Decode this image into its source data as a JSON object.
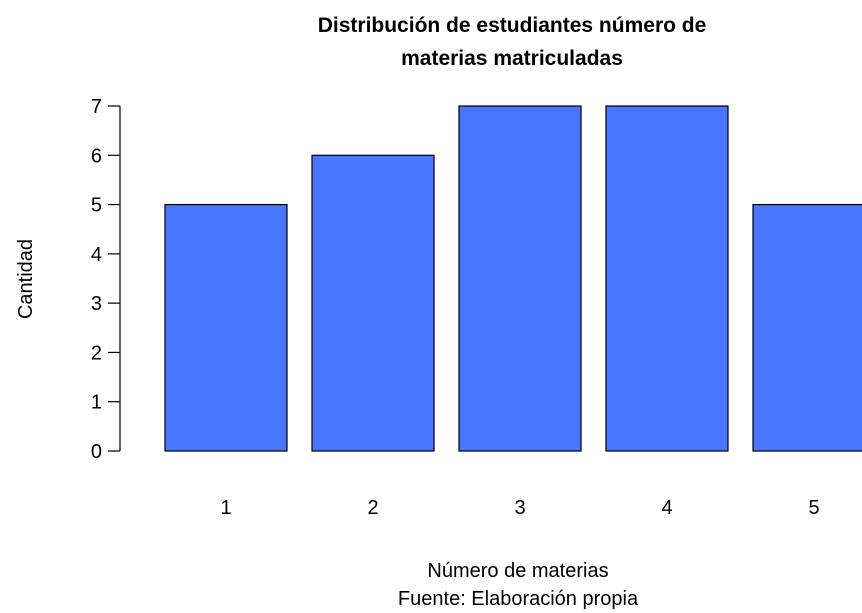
{
  "chart_data": {
    "type": "bar",
    "title_lines": [
      "Distribución de estudiantes número de",
      "materias matriculadas"
    ],
    "categories": [
      "1",
      "2",
      "3",
      "4",
      "5"
    ],
    "values": [
      5,
      6,
      7,
      7,
      5
    ],
    "xlabel": "Número de materias",
    "source": "Fuente: Elaboración propia",
    "ylabel": "Cantidad",
    "ylim": [
      0,
      7
    ],
    "yticks": [
      "0",
      "1",
      "2",
      "3",
      "4",
      "5",
      "6",
      "7"
    ],
    "bar_color": "#4876ff",
    "grid": false
  }
}
